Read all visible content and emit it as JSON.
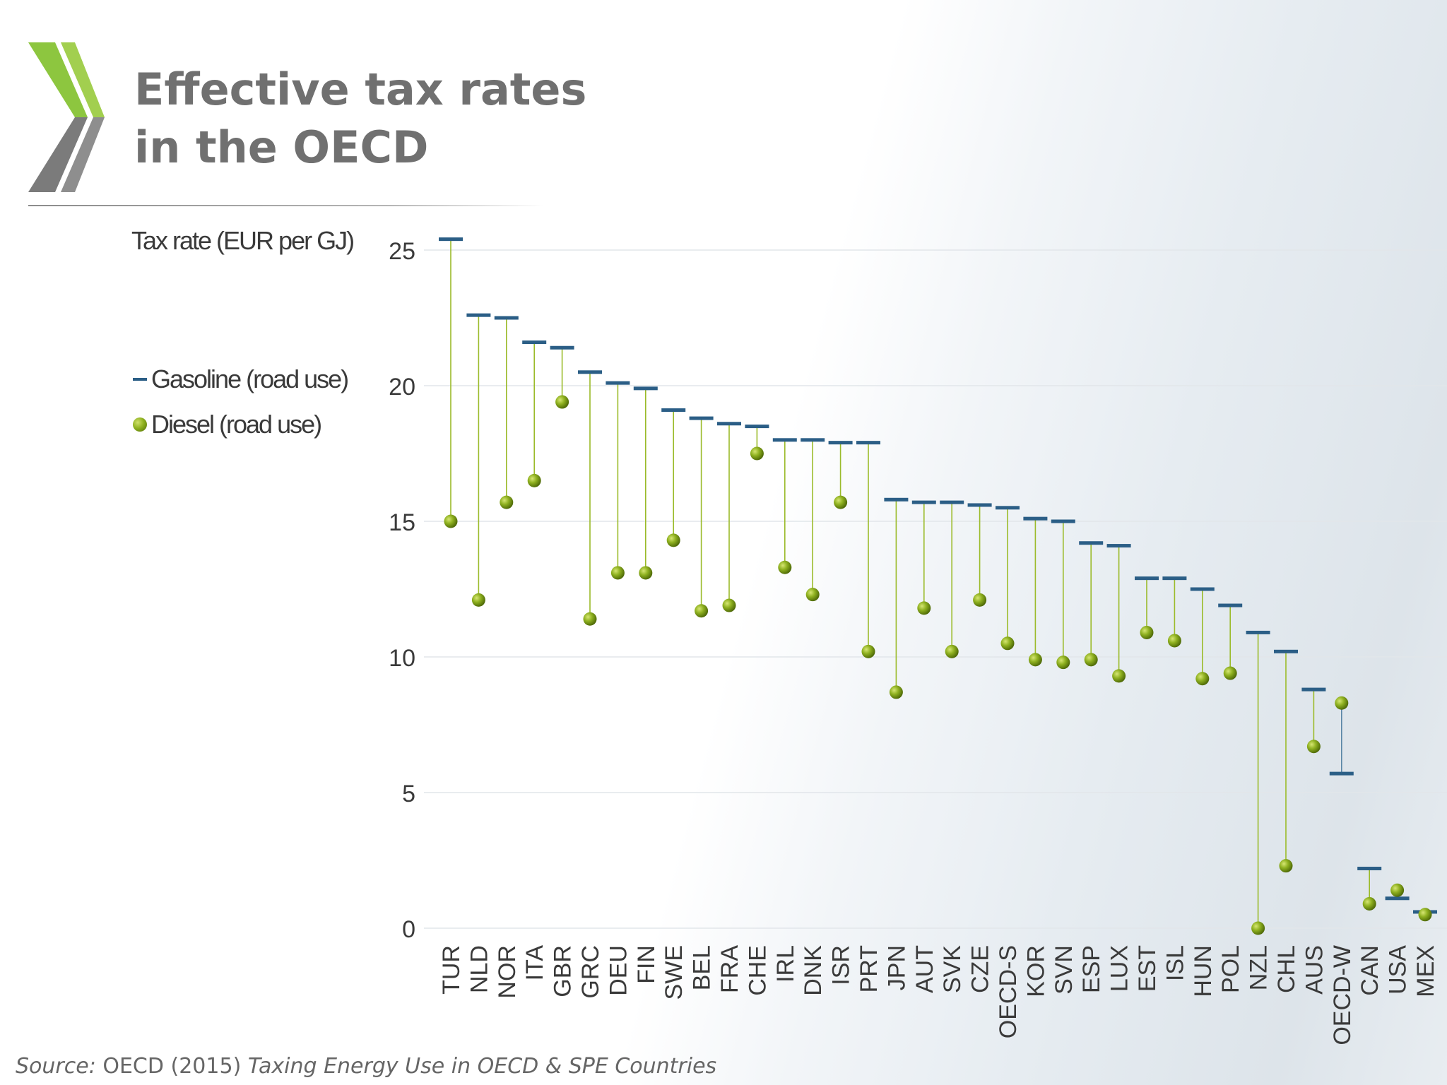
{
  "title": {
    "line1": "Effective tax rates",
    "line2": "in the OECD"
  },
  "source": {
    "prefix": "Source:",
    "text": "OECD (2015)",
    "publication": "Taxing Energy Use in OECD & SPE Countries"
  },
  "colors": {
    "title": "#707070",
    "gasoline": "#2b5e86",
    "connector_green": "#9bbb2a",
    "diesel": "#8fb120",
    "axis_text": "#3a3a3a",
    "logo_green": "#8dc63f",
    "logo_gray": "#7b7b7b"
  },
  "chart_data": {
    "type": "dot-range",
    "ylabel": "Tax rate (EUR per GJ)",
    "ylim": [
      0,
      25.5
    ],
    "yticks": [
      0,
      5,
      10,
      15,
      20,
      25
    ],
    "grid": true,
    "legend_position": "top-left",
    "categories": [
      "TUR",
      "NLD",
      "NOR",
      "ITA",
      "GBR",
      "GRC",
      "DEU",
      "FIN",
      "SWE",
      "BEL",
      "FRA",
      "CHE",
      "IRL",
      "DNK",
      "ISR",
      "PRT",
      "JPN",
      "AUT",
      "SVK",
      "CZE",
      "OECD-S",
      "KOR",
      "SVN",
      "ESP",
      "LUX",
      "EST",
      "ISL",
      "HUN",
      "POL",
      "NZL",
      "CHL",
      "AUS",
      "OECD-W",
      "CAN",
      "USA",
      "MEX"
    ],
    "series": [
      {
        "name": "Gasoline (road use)",
        "marker": "dash",
        "values": [
          25.4,
          22.6,
          22.5,
          21.6,
          21.4,
          20.5,
          20.1,
          19.9,
          19.1,
          18.8,
          18.6,
          18.5,
          18.0,
          18.0,
          17.9,
          17.9,
          15.8,
          15.7,
          15.7,
          15.6,
          15.5,
          15.1,
          15.0,
          14.2,
          14.1,
          12.9,
          12.9,
          12.5,
          11.9,
          10.9,
          10.2,
          8.8,
          5.7,
          2.2,
          1.1,
          0.6
        ]
      },
      {
        "name": "Diesel (road use)",
        "marker": "dot",
        "values": [
          15.0,
          12.1,
          15.7,
          16.5,
          19.4,
          11.4,
          13.1,
          13.1,
          14.3,
          11.7,
          11.9,
          17.5,
          13.3,
          12.3,
          15.7,
          10.2,
          8.7,
          11.8,
          10.2,
          12.1,
          10.5,
          9.9,
          9.8,
          9.9,
          9.3,
          10.9,
          10.6,
          9.2,
          9.4,
          0.0,
          2.3,
          6.7,
          8.3,
          0.9,
          1.4,
          0.5
        ]
      }
    ]
  }
}
